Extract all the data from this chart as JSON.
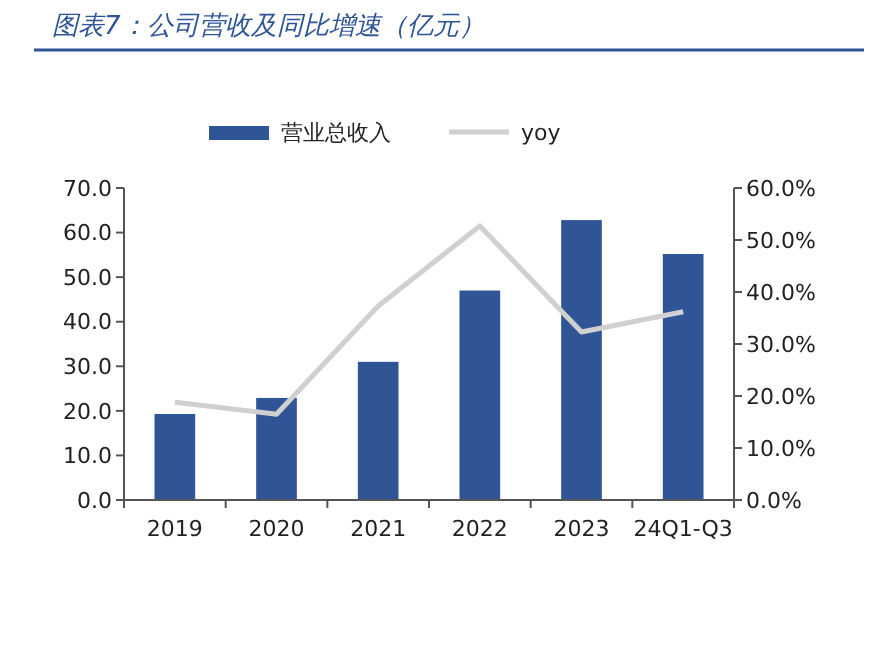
{
  "chart_data": {
    "type": "bar",
    "title": "图表7：公司营收及同比增速（亿元）",
    "categories": [
      "2019",
      "2020",
      "2021",
      "2022",
      "2023",
      "24Q1-Q3"
    ],
    "series": [
      {
        "name": "营业总收入",
        "color": "#2f5597",
        "values": [
          19.3,
          22.9,
          31.0,
          47.0,
          62.8,
          55.2
        ]
      },
      {
        "name": "yoy",
        "type": "line",
        "axis": "y2",
        "color": "#d0d0d0",
        "values": [
          18.8,
          16.5,
          37.3,
          52.7,
          32.3,
          36.2
        ]
      }
    ],
    "ylim": [
      0,
      70
    ],
    "yticks": [
      {
        "value": 0,
        "label": "0.0"
      },
      {
        "value": 10,
        "label": "10.0"
      },
      {
        "value": 20,
        "label": "20.0"
      },
      {
        "value": 30,
        "label": "30.0"
      },
      {
        "value": 40,
        "label": "40.0"
      },
      {
        "value": 50,
        "label": "50.0"
      },
      {
        "value": 60,
        "label": "60.0"
      },
      {
        "value": 70,
        "label": "70.0"
      }
    ],
    "y2lim": [
      0,
      60
    ],
    "y2ticks": [
      {
        "value": 0,
        "label": "0.0%"
      },
      {
        "value": 10,
        "label": "10.0%"
      },
      {
        "value": 20,
        "label": "20.0%"
      },
      {
        "value": 30,
        "label": "30.0%"
      },
      {
        "value": 40,
        "label": "40.0%"
      },
      {
        "value": 50,
        "label": "50.0%"
      },
      {
        "value": 60,
        "label": "60.0%"
      }
    ],
    "legend": "top",
    "grid": false,
    "marker": "none",
    "line_style": "solid"
  }
}
